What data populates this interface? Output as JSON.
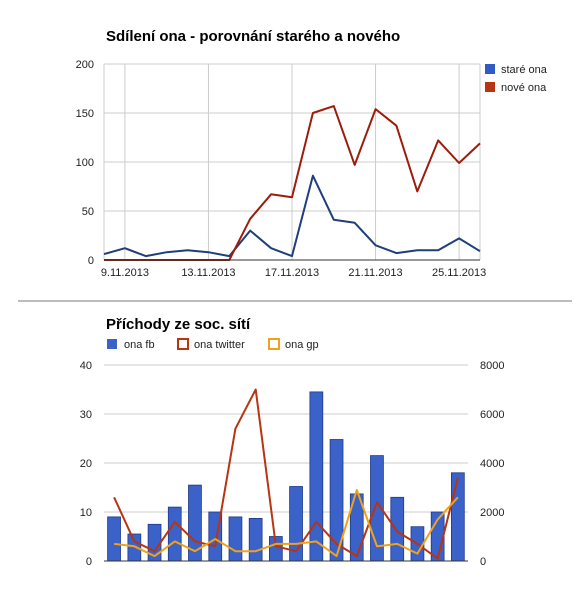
{
  "chart_data": [
    {
      "type": "line",
      "title": "Sdílení ona - porovnání starého a nového",
      "xlabel": "",
      "ylabel": "",
      "ylim": [
        0,
        200
      ],
      "yticks": [
        "0",
        "50",
        "100",
        "150",
        "200"
      ],
      "x": [
        "8.11.2013",
        "9.11.2013",
        "10.11.2013",
        "11.11.2013",
        "12.11.2013",
        "13.11.2013",
        "14.11.2013",
        "15.11.2013",
        "16.11.2013",
        "17.11.2013",
        "18.11.2013",
        "19.11.2013",
        "20.11.2013",
        "21.11.2013",
        "22.11.2013",
        "23.11.2013",
        "24.11.2013",
        "25.11.2013",
        "26.11.2013"
      ],
      "xtick_labels": [
        "9.11.2013",
        "13.11.2013",
        "17.11.2013",
        "21.11.2013",
        "25.11.2013"
      ],
      "grid": true,
      "legend_position": "right",
      "series": [
        {
          "name": "staré ona",
          "color": "#1f3e7a",
          "values": [
            6,
            12,
            4,
            8,
            10,
            8,
            4,
            30,
            12,
            4,
            86,
            41,
            38,
            15,
            7,
            10,
            10,
            22,
            9
          ]
        },
        {
          "name": "nové ona",
          "color": "#9c1d0c",
          "values": [
            0,
            0,
            0,
            0,
            0,
            0,
            0,
            42,
            67,
            64,
            150,
            157,
            97,
            154,
            137,
            70,
            122,
            99,
            119
          ]
        }
      ]
    },
    {
      "type": "bar",
      "title": "Příchody ze soc. sítí",
      "xlabel": "",
      "ylabel": "",
      "ylim": [
        0,
        40
      ],
      "yticks": [
        "0",
        "10",
        "20",
        "30",
        "40"
      ],
      "y2lim": [
        0,
        8000
      ],
      "y2ticks": [
        "0",
        "2000",
        "4000",
        "6000",
        "8000"
      ],
      "legend_position": "top",
      "grid": true,
      "series": [
        {
          "name": "ona fb",
          "color": "#3b62c8",
          "axis": "left",
          "mark": "bar",
          "values": [
            9,
            5.5,
            7.5,
            11,
            15.5,
            10,
            9,
            8.7,
            5,
            15.2,
            34.5,
            24.8,
            13.7,
            21.5,
            13,
            7,
            10,
            18
          ]
        },
        {
          "name": "ona twitter",
          "color": "#b83412",
          "axis": "right",
          "mark": "line",
          "values": [
            2600,
            800,
            400,
            1600,
            800,
            600,
            5400,
            7000,
            600,
            400,
            1600,
            700,
            200,
            2400,
            1200,
            700,
            100,
            3400
          ]
        },
        {
          "name": "ona gp",
          "color": "#f0a21a",
          "axis": "right",
          "mark": "line",
          "values": [
            700,
            600,
            200,
            800,
            400,
            900,
            400,
            400,
            700,
            700,
            800,
            200,
            2900,
            600,
            700,
            300,
            1700,
            2600
          ]
        }
      ]
    }
  ]
}
